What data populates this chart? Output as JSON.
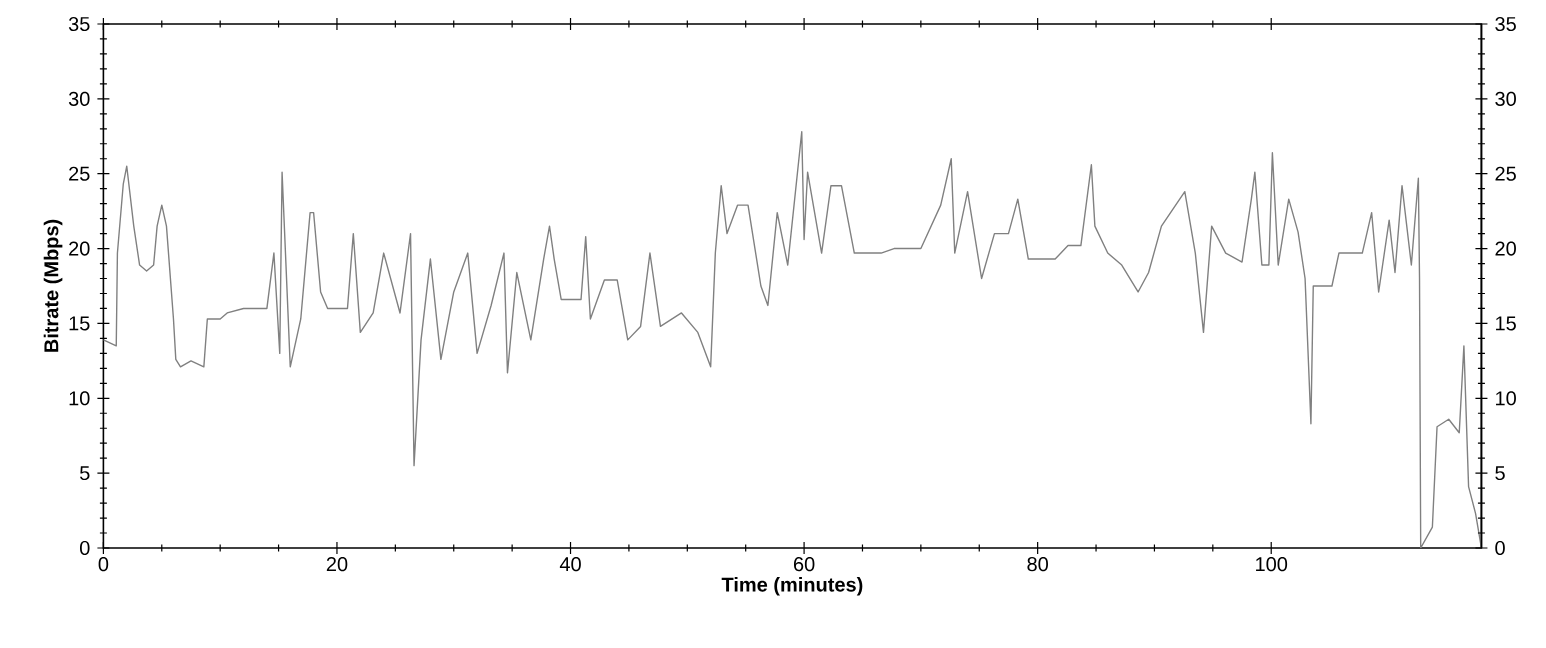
{
  "chart_data": {
    "type": "line",
    "xlabel": "Time (minutes)",
    "ylabel": "Bitrate (Mbps)",
    "color": "#808080",
    "x": [
      0,
      1.1,
      1.2,
      1.7,
      2.0,
      2.6,
      3.1,
      3.7,
      4.3,
      4.6,
      5.0,
      5.4,
      6.0,
      6.2,
      6.6,
      7.5,
      8.6,
      8.9,
      10,
      10.6,
      12,
      14,
      14.6,
      15.1,
      15.3,
      16,
      16.9,
      17.7,
      18,
      18.6,
      19.2,
      20.9,
      21.4,
      22,
      23.1,
      24,
      25.4,
      26.3,
      26.6,
      27.2,
      28,
      28.9,
      30,
      31.2,
      32,
      33.2,
      34.3,
      34.6,
      35.4,
      36.6,
      37.7,
      38.2,
      38.6,
      39.2,
      40.9,
      41.3,
      41.7,
      42.9,
      44,
      44.9,
      46,
      46.8,
      47.7,
      49.5,
      50.9,
      52,
      52.4,
      52.9,
      53.4,
      54.3,
      55.2,
      56.3,
      56.9,
      57.7,
      58.6,
      59.8,
      60.0,
      60.3,
      61.5,
      62.3,
      63.2,
      64.3,
      66.6,
      67.7,
      70,
      71.7,
      72.6,
      72.9,
      74,
      75.2,
      76.3,
      77.5,
      78.3,
      79.2,
      81.5,
      82.6,
      83.7,
      84.6,
      84.9,
      86,
      87.2,
      88.6,
      89.5,
      90.6,
      92.6,
      93.5,
      94.2,
      94.9,
      96.1,
      97.5,
      98.3,
      98.6,
      99.2,
      99.8,
      100.1,
      100.6,
      101.5,
      102.3,
      102.9,
      103.4,
      103.6,
      104,
      105.2,
      105.8,
      107.8,
      108.6,
      109.2,
      110.1,
      110.6,
      111.2,
      112,
      112.6,
      112.7,
      112.8,
      113.8,
      114.2,
      115.2,
      116.1,
      116.5,
      116.9,
      117.5,
      118
    ],
    "values": [
      13.9,
      13.5,
      19.7,
      24.3,
      25.5,
      21.5,
      18.9,
      18.5,
      18.9,
      21.5,
      22.9,
      21.5,
      15.3,
      12.6,
      12.1,
      12.5,
      12.1,
      15.3,
      15.3,
      15.7,
      16,
      16,
      19.7,
      13,
      25.1,
      12.1,
      15.3,
      22.4,
      22.4,
      17.1,
      16,
      16,
      21,
      14.4,
      15.7,
      19.7,
      15.7,
      21,
      5.5,
      13.9,
      19.3,
      12.6,
      17.1,
      19.7,
      13,
      16.2,
      19.7,
      11.7,
      18.4,
      13.9,
      19.3,
      21.5,
      19.3,
      16.6,
      16.6,
      20.8,
      15.3,
      17.9,
      17.9,
      13.9,
      14.8,
      19.7,
      14.8,
      15.7,
      14.4,
      12.1,
      19.7,
      24.2,
      21,
      22.9,
      22.9,
      17.5,
      16.2,
      22.4,
      18.9,
      27.8,
      20.6,
      25.1,
      19.7,
      24.2,
      24.2,
      19.7,
      19.7,
      20,
      20,
      22.9,
      26,
      19.7,
      23.8,
      18,
      21,
      21,
      23.3,
      19.3,
      19.3,
      20.2,
      20.2,
      25.6,
      21.5,
      19.7,
      18.9,
      17.1,
      18.4,
      21.5,
      23.8,
      19.7,
      14.4,
      21.5,
      19.7,
      19.1,
      23.3,
      25.1,
      18.9,
      18.9,
      26.4,
      18.9,
      23.3,
      21.1,
      18,
      8.3,
      17.5,
      17.5,
      17.5,
      19.7,
      19.7,
      22.4,
      17.1,
      21.9,
      18.4,
      24.2,
      18.9,
      24.7,
      18,
      0,
      1.4,
      8.1,
      8.6,
      7.7,
      13.5,
      4.1,
      2.3,
      0
    ],
    "xlim": [
      0,
      118
    ],
    "xticks": [
      0,
      20,
      40,
      60,
      80,
      100
    ],
    "ylim": [
      0,
      35
    ],
    "yticks": [
      0,
      5,
      10,
      15,
      20,
      25,
      30,
      35
    ],
    "y2lim": [
      0,
      35
    ],
    "y2ticks": [
      0,
      5,
      10,
      15,
      20,
      25,
      30,
      35
    ]
  }
}
